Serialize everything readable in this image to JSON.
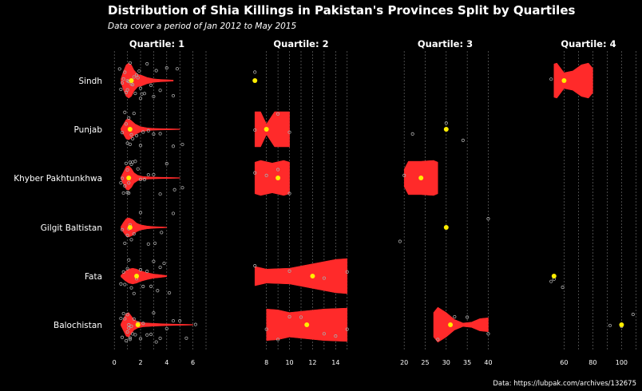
{
  "title": "Distribution of Shia Killings in Pakistan's Provinces Split by Quartiles",
  "subtitle": "Data cover a period of Jan 2012  to May 2015",
  "caption": "Data: https://lubpak.com/archives/132675",
  "colors": {
    "violin": "#ff2a2a",
    "median": "#ffee00",
    "points": "#aaaaaa",
    "grid": "#777777",
    "background": "#000000"
  },
  "chart_data": {
    "type": "violin",
    "provinces": [
      "Sindh",
      "Punjab",
      "Khyber Pakhtunkhwa",
      "Gilgit Baltistan",
      "Fata",
      "Balochistan"
    ],
    "facets": [
      {
        "label": "Quartile: 1",
        "xlim": [
          -0.5,
          7
        ],
        "ticks": [
          0,
          2,
          4,
          6
        ],
        "tick_labels": [
          "0",
          "2",
          "4",
          "6"
        ],
        "gridlines": [
          1,
          3,
          5,
          7
        ],
        "rows": {
          "Sindh": {
            "range": [
              0.5,
              4.5
            ],
            "median": 1.2,
            "marker": 1.3,
            "profile": [
              [
                0.5,
                0.1
              ],
              [
                0.7,
                0.55
              ],
              [
                0.9,
                0.9
              ],
              [
                1.1,
                1.0
              ],
              [
                1.3,
                0.9
              ],
              [
                1.5,
                0.6
              ],
              [
                1.8,
                0.35
              ],
              [
                2.1,
                0.3
              ],
              [
                2.5,
                0.18
              ],
              [
                3,
                0.1
              ],
              [
                3.5,
                0.07
              ],
              [
                4.5,
                0.03
              ]
            ],
            "points": [
              0.4,
              0.5,
              0.6,
              0.7,
              0.8,
              0.9,
              1,
              1,
              1.1,
              1.1,
              1.2,
              1.3,
              1.4,
              1.5,
              1.6,
              1.7,
              1.8,
              1.9,
              2,
              2,
              2.1,
              2.3,
              2.5,
              2.8,
              3,
              3.2,
              3.5,
              4,
              4.5,
              4.8
            ]
          },
          "Punjab": {
            "range": [
              0.5,
              5
            ],
            "median": 1.2,
            "marker": 1.2,
            "profile": [
              [
                0.5,
                0.05
              ],
              [
                0.7,
                0.3
              ],
              [
                0.9,
                0.55
              ],
              [
                1.1,
                0.6
              ],
              [
                1.3,
                0.5
              ],
              [
                1.6,
                0.3
              ],
              [
                2,
                0.15
              ],
              [
                2.5,
                0.08
              ],
              [
                3,
                0.05
              ],
              [
                4,
                0.03
              ],
              [
                5,
                0.02
              ]
            ],
            "points": [
              0.6,
              0.8,
              0.9,
              1,
              1.1,
              1.2,
              1.3,
              1.4,
              1.5,
              1.7,
              2,
              2.2,
              2.6,
              3,
              3.5,
              4.5,
              5.2
            ]
          },
          "Khyber Pakhtunkhwa": {
            "range": [
              0.5,
              5
            ],
            "median": 1.1,
            "marker": 1.1,
            "profile": [
              [
                0.5,
                0.05
              ],
              [
                0.7,
                0.35
              ],
              [
                0.9,
                0.65
              ],
              [
                1.1,
                0.7
              ],
              [
                1.3,
                0.55
              ],
              [
                1.5,
                0.3
              ],
              [
                1.8,
                0.15
              ],
              [
                2.2,
                0.08
              ],
              [
                3,
                0.05
              ],
              [
                4,
                0.03
              ],
              [
                5,
                0.02
              ]
            ],
            "points": [
              0.5,
              0.6,
              0.7,
              0.8,
              0.9,
              1,
              1,
              1.1,
              1.1,
              1.2,
              1.3,
              1.4,
              1.6,
              1.8,
              2,
              2.3,
              2.6,
              3,
              3.5,
              4,
              4.6,
              5.2
            ]
          },
          "Gilgit Baltistan": {
            "range": [
              0.5,
              4
            ],
            "median": 1.2,
            "marker": 1.2,
            "profile": [
              [
                0.5,
                0.05
              ],
              [
                0.7,
                0.3
              ],
              [
                0.9,
                0.5
              ],
              [
                1.1,
                0.55
              ],
              [
                1.4,
                0.45
              ],
              [
                1.7,
                0.25
              ],
              [
                2,
                0.15
              ],
              [
                2.5,
                0.08
              ],
              [
                3,
                0.05
              ],
              [
                4,
                0.02
              ]
            ],
            "points": [
              0.6,
              0.8,
              1,
              1.1,
              1.2,
              1.3,
              1.5,
              2,
              2.6,
              3.1,
              3.6,
              4.5
            ]
          },
          "Fata": {
            "range": [
              0.5,
              4
            ],
            "median": 1.6,
            "marker": 1.7,
            "profile": [
              [
                0.5,
                0.05
              ],
              [
                0.8,
                0.25
              ],
              [
                1.1,
                0.4
              ],
              [
                1.4,
                0.45
              ],
              [
                1.7,
                0.4
              ],
              [
                2,
                0.3
              ],
              [
                2.5,
                0.2
              ],
              [
                3,
                0.12
              ],
              [
                3.5,
                0.08
              ],
              [
                4,
                0.03
              ]
            ],
            "points": [
              0.5,
              0.7,
              0.8,
              1,
              1.1,
              1.3,
              1.5,
              1.7,
              2,
              2.2,
              2.5,
              2.8,
              3,
              3.3,
              3.5,
              3.8,
              4.2
            ]
          },
          "Balochistan": {
            "range": [
              0.5,
              6
            ],
            "median": 1.1,
            "marker": 1.8,
            "profile": [
              [
                0.5,
                0.05
              ],
              [
                0.7,
                0.35
              ],
              [
                0.9,
                0.65
              ],
              [
                1.1,
                0.7
              ],
              [
                1.3,
                0.5
              ],
              [
                1.5,
                0.3
              ],
              [
                1.8,
                0.18
              ],
              [
                2.2,
                0.12
              ],
              [
                3,
                0.08
              ],
              [
                4,
                0.05
              ],
              [
                5,
                0.03
              ],
              [
                6,
                0.02
              ]
            ],
            "points": [
              0.5,
              0.6,
              0.7,
              0.8,
              0.9,
              1,
              1,
              1.1,
              1.1,
              1.2,
              1.2,
              1.3,
              1.4,
              1.5,
              1.6,
              1.8,
              2,
              2.2,
              2.5,
              2.8,
              3,
              3.2,
              3.5,
              4,
              4.5,
              5,
              5.5,
              6.2
            ]
          }
        }
      },
      {
        "label": "Quartile: 2",
        "xlim": [
          6.5,
          15.5
        ],
        "ticks": [
          8,
          10,
          12,
          14
        ],
        "tick_labels": [
          "8",
          "10",
          "12",
          "14"
        ],
        "gridlines": [
          9,
          11,
          13,
          15
        ],
        "rows": {
          "Sindh": {
            "range": null,
            "median": 7,
            "marker": 7,
            "profile": [],
            "points": [
              7
            ]
          },
          "Punjab": {
            "range": [
              7,
              10
            ],
            "median": 8,
            "marker": 8,
            "profile": [
              [
                7,
                1
              ],
              [
                7.5,
                1
              ],
              [
                8,
                0.3
              ],
              [
                8.7,
                1
              ],
              [
                10,
                1
              ]
            ],
            "points": [
              7,
              8,
              9,
              10
            ]
          },
          "Khyber Pakhtunkhwa": {
            "range": [
              7,
              10
            ],
            "median": 9,
            "marker": 9,
            "profile": [
              [
                7,
                0.9
              ],
              [
                7.5,
                1
              ],
              [
                8.5,
                0.85
              ],
              [
                9.5,
                1
              ],
              [
                10,
                0.9
              ]
            ],
            "points": [
              7,
              8,
              9,
              10
            ]
          },
          "Gilgit Baltistan": {
            "range": null,
            "median": null,
            "marker": null,
            "profile": [],
            "points": []
          },
          "Fata": {
            "range": [
              7,
              15
            ],
            "median": 12,
            "marker": 12,
            "profile": [
              [
                7,
                0.55
              ],
              [
                8,
                0.4
              ],
              [
                10,
                0.45
              ],
              [
                12,
                0.7
              ],
              [
                14,
                0.95
              ],
              [
                15,
                1
              ]
            ],
            "points": [
              7,
              10,
              13,
              15
            ]
          },
          "Balochistan": {
            "range": [
              8,
              15
            ],
            "median": 11.5,
            "marker": 11.5,
            "profile": [
              [
                8,
                0.9
              ],
              [
                9,
                0.85
              ],
              [
                10,
                0.7
              ],
              [
                11.5,
                0.8
              ],
              [
                13,
                0.9
              ],
              [
                15,
                0.95
              ]
            ],
            "points": [
              8,
              9,
              10,
              11,
              13,
              14,
              15
            ]
          }
        }
      },
      {
        "label": "Quartile: 3",
        "xlim": [
          17.5,
          42
        ],
        "ticks": [
          20,
          25,
          30,
          35,
          40
        ],
        "tick_labels": [
          "20",
          "25",
          "30",
          "35",
          "40"
        ],
        "gridlines": [],
        "rows": {
          "Sindh": {
            "range": null,
            "median": null,
            "marker": null,
            "profile": [],
            "points": []
          },
          "Punjab": {
            "range": null,
            "median": 30,
            "marker": 30,
            "profile": [],
            "points": [
              22,
              30,
              34
            ]
          },
          "Khyber Pakhtunkhwa": {
            "range": [
              20,
              28
            ],
            "median": 24,
            "marker": 24,
            "profile": [
              [
                20,
                0.5
              ],
              [
                21,
                0.95
              ],
              [
                24,
                0.95
              ],
              [
                27,
                1
              ],
              [
                28,
                0.9
              ]
            ],
            "points": [
              20
            ]
          },
          "Gilgit Baltistan": {
            "range": null,
            "median": 30,
            "marker": 30,
            "profile": [],
            "points": [
              19,
              30,
              40
            ]
          },
          "Fata": {
            "range": null,
            "median": null,
            "marker": null,
            "profile": [],
            "points": []
          },
          "Balochistan": {
            "range": [
              27,
              40
            ],
            "median": 31,
            "marker": 31,
            "profile": [
              [
                27,
                0.7
              ],
              [
                28,
                1
              ],
              [
                30,
                0.7
              ],
              [
                32,
                0.3
              ],
              [
                34,
                0.1
              ],
              [
                36,
                0.15
              ],
              [
                38,
                0.35
              ],
              [
                40,
                0.4
              ]
            ],
            "points": [
              28,
              32,
              35,
              40
            ]
          }
        }
      },
      {
        "label": "Quartile: 4",
        "xlim": [
          42,
          112
        ],
        "ticks": [
          60,
          80,
          100
        ],
        "tick_labels": [
          "60",
          "80",
          "100"
        ],
        "gridlines": [
          70,
          90,
          110
        ],
        "rows": {
          "Sindh": {
            "range": [
              53,
              80
            ],
            "median": 60,
            "marker": 60,
            "profile": [
              [
                53,
                0.95
              ],
              [
                55,
                1
              ],
              [
                60,
                0.45
              ],
              [
                66,
                0.55
              ],
              [
                72,
                0.9
              ],
              [
                77,
                1
              ],
              [
                80,
                0.7
              ]
            ],
            "points": [
              51
            ]
          },
          "Punjab": {
            "range": null,
            "median": null,
            "marker": null,
            "profile": [],
            "points": []
          },
          "Khyber Pakhtunkhwa": {
            "range": null,
            "median": null,
            "marker": null,
            "profile": [],
            "points": []
          },
          "Gilgit Baltistan": {
            "range": null,
            "median": null,
            "marker": null,
            "profile": [],
            "points": []
          },
          "Fata": {
            "range": null,
            "median": 53,
            "marker": 53,
            "profile": [],
            "points": [
              51,
              53,
              59
            ]
          },
          "Balochistan": {
            "range": null,
            "median": 100,
            "marker": 100,
            "profile": [],
            "points": [
              92,
              100,
              108
            ]
          }
        }
      }
    ]
  }
}
